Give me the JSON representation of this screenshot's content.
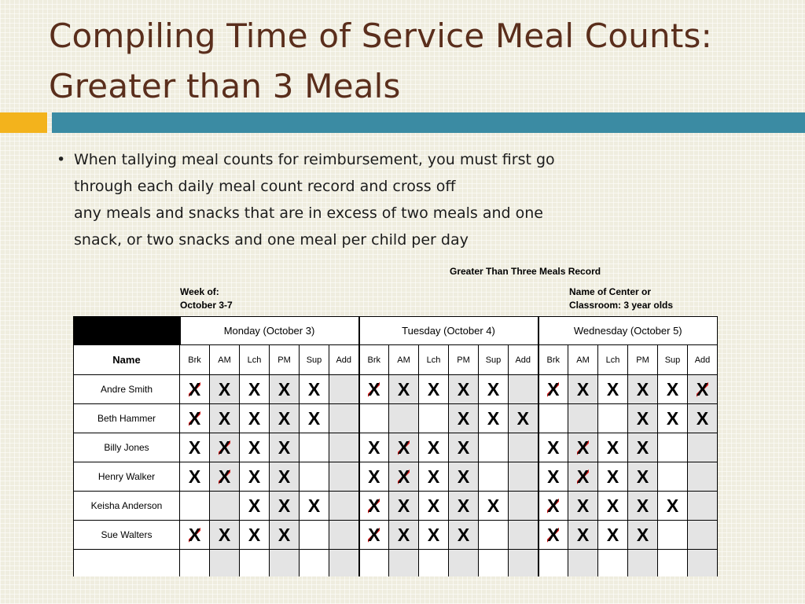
{
  "title": {
    "line1": "Compiling Time of Service Meal Counts:",
    "line2": "Greater than 3 Meals"
  },
  "bullet": {
    "lines": [
      "When tallying meal counts for reimbursement, you must first go",
      "through each daily meal count record and cross off",
      "any meals and snacks that are in excess of two meals and one",
      "snack, or two snacks and one meal  per child per day"
    ]
  },
  "accent_colors": {
    "orange": "#f3b31c",
    "teal": "#3b8ba3",
    "title": "#5a2e1c",
    "strike": "#e02020"
  },
  "record": {
    "title": "Greater Than Three Meals Record",
    "week_label": "Week of:",
    "week_value": "October  3-7",
    "center_label": "Name of Center or",
    "center_value": "Classroom:  3 year olds",
    "name_header": "Name",
    "days": [
      "Monday (October 3)",
      "Tuesday (October 4)",
      "Wednesday (October 5)"
    ],
    "meal_columns": [
      "Brk",
      "AM",
      "Lch",
      "PM",
      "Sup",
      "Add"
    ],
    "mark": "X",
    "children": [
      {
        "name": "Andre Smith"
      },
      {
        "name": "Beth Hammer"
      },
      {
        "name": "Billy Jones"
      },
      {
        "name": "Henry Walker"
      },
      {
        "name": "Keisha Anderson"
      },
      {
        "name": "Sue Walters"
      }
    ]
  }
}
